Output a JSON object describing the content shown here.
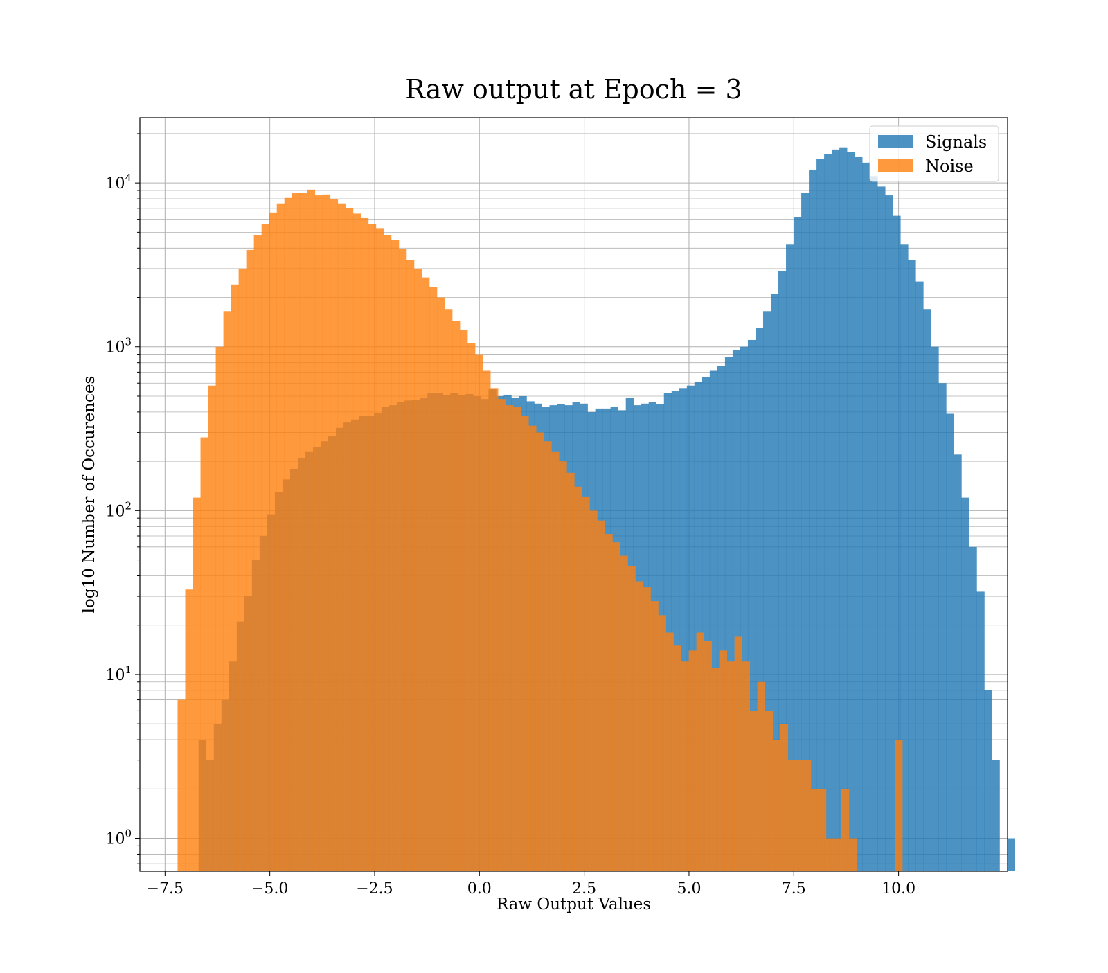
{
  "chart_data": {
    "type": "histogram",
    "title": "Raw output at Epoch = 3",
    "xlabel": "Raw Output Values",
    "ylabel": "log10 Number of Occurences",
    "xlim": [
      -8.1,
      12.6
    ],
    "ylim": [
      0.63,
      25000
    ],
    "yscale": "log",
    "grid": true,
    "grid_minor_y": true,
    "legend_position": "top-right",
    "x_ticks": [
      -7.5,
      -5.0,
      -2.5,
      0.0,
      2.5,
      5.0,
      7.5,
      10.0
    ],
    "x_tick_labels": [
      "−7.5",
      "−5.0",
      "−2.5",
      "0.0",
      "2.5",
      "5.0",
      "7.5",
      "10.0"
    ],
    "y_ticks": [
      {
        "value": 1,
        "base": "10",
        "exp": "0"
      },
      {
        "value": 10,
        "base": "10",
        "exp": "1"
      },
      {
        "value": 100,
        "base": "10",
        "exp": "2"
      },
      {
        "value": 1000,
        "base": "10",
        "exp": "3"
      },
      {
        "value": 10000,
        "base": "10",
        "exp": "4"
      }
    ],
    "series": [
      {
        "name": "Signals",
        "color": "#1f77b4",
        "alpha": 0.8,
        "bin_start": -6.7,
        "bin_width": 0.182,
        "counts": [
          4,
          3,
          5,
          7,
          12,
          21,
          30,
          50,
          70,
          95,
          130,
          155,
          180,
          210,
          230,
          245,
          265,
          285,
          320,
          345,
          360,
          380,
          380,
          395,
          430,
          440,
          460,
          470,
          475,
          490,
          520,
          520,
          505,
          520,
          505,
          515,
          500,
          480,
          550,
          500,
          510,
          490,
          500,
          465,
          450,
          430,
          440,
          445,
          440,
          460,
          450,
          400,
          420,
          420,
          430,
          410,
          490,
          440,
          450,
          460,
          445,
          520,
          540,
          560,
          580,
          610,
          650,
          720,
          760,
          870,
          950,
          1000,
          1100,
          1300,
          1650,
          2100,
          2900,
          4200,
          6200,
          8700,
          12000,
          14000,
          15000,
          16000,
          16500,
          15500,
          14500,
          13300,
          11000,
          9500,
          8400,
          6300,
          4200,
          3400,
          2500,
          1700,
          1000,
          600,
          390,
          220,
          120,
          60,
          32,
          8,
          3,
          0,
          1
        ]
      },
      {
        "name": "Noise",
        "color": "#ff7f0e",
        "alpha": 0.8,
        "bin_start": -7.2,
        "bin_width": 0.182,
        "counts": [
          7,
          33,
          120,
          280,
          580,
          1000,
          1650,
          2400,
          3000,
          3900,
          4800,
          5600,
          6600,
          7500,
          8100,
          8700,
          8700,
          9100,
          8400,
          8500,
          8000,
          7500,
          7000,
          6500,
          6100,
          5600,
          5300,
          4800,
          4500,
          3950,
          3400,
          3000,
          2650,
          2320,
          2000,
          1700,
          1440,
          1270,
          1050,
          900,
          720,
          560,
          480,
          440,
          430,
          380,
          330,
          300,
          265,
          230,
          200,
          170,
          140,
          122,
          100,
          87,
          72,
          64,
          53,
          46,
          37,
          34,
          28,
          23,
          18,
          15,
          12,
          14,
          18,
          16,
          11,
          14,
          12,
          17,
          12,
          6,
          9,
          6,
          4,
          5,
          3,
          3,
          3,
          2,
          2,
          1,
          1,
          2,
          1,
          0,
          0,
          0,
          0,
          0,
          4
        ]
      }
    ]
  }
}
